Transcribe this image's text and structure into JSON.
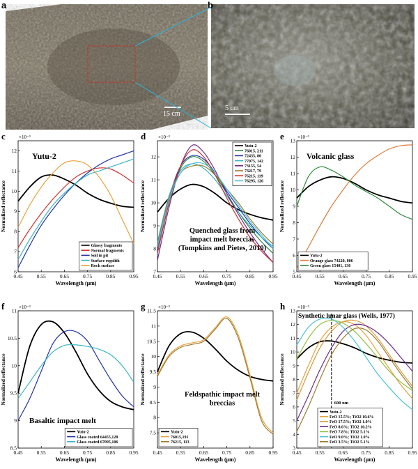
{
  "panel_letters": {
    "a": "a",
    "b": "b",
    "c": "c",
    "d": "d",
    "e": "e",
    "f": "f",
    "g": "g",
    "h": "h"
  },
  "photos": {
    "a_scale": "15 cm",
    "b_scale": "5 cm"
  },
  "colors": {
    "yutu": "#000000",
    "red": "#d0312d",
    "blue": "#2233a8",
    "purple": "#6a2c8e",
    "teal": "#35b6c4",
    "orange": "#e8a33d",
    "green": "#2e8b3a",
    "gold": "#d39a3a",
    "darkgold": "#9c7b2e",
    "lime": "#8fbf3a",
    "cyan": "#49c2d9"
  },
  "common": {
    "xlabel": "Wavelength (μm)",
    "ylabel": "Normalized reflectance",
    "exponent": "×10⁻³",
    "xticks": [
      "0.45",
      "0.55",
      "0.65",
      "0.75",
      "0.85",
      "0.95"
    ]
  },
  "chart_data": [
    {
      "id": "c",
      "type": "line",
      "title": "Yutu-2",
      "xlim": [
        0.45,
        0.95
      ],
      "ylim": [
        6,
        12.5
      ],
      "yticks": [
        "6",
        "7",
        "8",
        "9",
        "10",
        "11",
        "12"
      ],
      "legend": "bottom-right",
      "series": [
        {
          "name": "Glassy fragments",
          "color": "#000000",
          "x": [
            0.45,
            0.5,
            0.55,
            0.6,
            0.65,
            0.7,
            0.75,
            0.8,
            0.85,
            0.9,
            0.95
          ],
          "y": [
            9.5,
            10.2,
            10.7,
            10.8,
            10.6,
            10.3,
            9.9,
            9.6,
            9.4,
            9.25,
            9.2
          ]
        },
        {
          "name": "Normal fragments",
          "color": "#d0312d",
          "x": [
            0.45,
            0.5,
            0.55,
            0.6,
            0.65,
            0.7,
            0.75,
            0.8,
            0.85,
            0.9,
            0.95
          ],
          "y": [
            7.2,
            8.1,
            8.9,
            9.6,
            10.2,
            10.7,
            11.0,
            11.15,
            11.1,
            10.8,
            10.4
          ]
        },
        {
          "name": "Soil in pit",
          "color": "#2233a8",
          "x": [
            0.45,
            0.5,
            0.55,
            0.6,
            0.65,
            0.7,
            0.75,
            0.8,
            0.85,
            0.9,
            0.95
          ],
          "y": [
            6.2,
            7.3,
            8.3,
            9.1,
            9.8,
            10.4,
            10.9,
            11.3,
            11.6,
            11.8,
            12.0
          ]
        },
        {
          "name": "Surface regolith",
          "color": "#35b6c4",
          "x": [
            0.45,
            0.5,
            0.55,
            0.6,
            0.65,
            0.7,
            0.75,
            0.8,
            0.85,
            0.9,
            0.95
          ],
          "y": [
            6.6,
            7.6,
            8.5,
            9.3,
            9.9,
            10.4,
            10.8,
            11.0,
            11.2,
            11.4,
            11.6
          ]
        },
        {
          "name": "Rock surface",
          "color": "#e8a33d",
          "x": [
            0.45,
            0.5,
            0.55,
            0.6,
            0.65,
            0.7,
            0.75,
            0.8,
            0.85,
            0.9,
            0.95
          ],
          "y": [
            8.2,
            9.3,
            10.2,
            10.9,
            11.4,
            11.5,
            11.3,
            10.7,
            9.8,
            8.6,
            7.4
          ]
        }
      ]
    },
    {
      "id": "d",
      "type": "line",
      "title": "Quenched glass from impact melt breccias (Tompkins and Pietes, 2010)",
      "title_lines": [
        "Quenched glass from",
        "impact melt breccias",
        "(Tompkins and Pietes, 2010)"
      ],
      "xlim": [
        0.45,
        0.95
      ],
      "ylim": [
        7,
        12.7
      ],
      "yticks": [
        "7",
        "8",
        "9",
        "10",
        "11",
        "12"
      ],
      "legend": "top-right",
      "series": [
        {
          "name": "Yutu-2",
          "color": "#000000",
          "x": [
            0.45,
            0.5,
            0.55,
            0.6,
            0.65,
            0.7,
            0.75,
            0.8,
            0.85,
            0.9,
            0.95
          ],
          "y": [
            9.6,
            10.2,
            10.6,
            10.8,
            10.7,
            10.4,
            10.0,
            9.7,
            9.5,
            9.35,
            9.25
          ]
        },
        {
          "name": "76015, 211",
          "color": "#2e8b3a",
          "x": [
            0.45,
            0.5,
            0.55,
            0.6,
            0.65,
            0.7,
            0.75,
            0.8,
            0.85,
            0.9,
            0.95
          ],
          "y": [
            7.8,
            10.0,
            11.5,
            12.0,
            11.8,
            11.2,
            10.4,
            9.6,
            8.9,
            8.3,
            7.8
          ]
        },
        {
          "name": "72435, 80",
          "color": "#2233a8",
          "x": [
            0.45,
            0.5,
            0.55,
            0.6,
            0.65,
            0.7,
            0.75,
            0.8,
            0.85,
            0.9,
            0.95
          ],
          "y": [
            8.0,
            10.2,
            11.6,
            12.05,
            11.9,
            11.3,
            10.5,
            9.8,
            9.1,
            8.5,
            8.0
          ]
        },
        {
          "name": "77075, 142",
          "color": "#35b6c4",
          "x": [
            0.45,
            0.5,
            0.55,
            0.6,
            0.65,
            0.7,
            0.75,
            0.8,
            0.85,
            0.9,
            0.95
          ],
          "y": [
            8.3,
            10.3,
            11.4,
            11.7,
            11.5,
            11.0,
            10.3,
            9.6,
            9.0,
            8.5,
            8.1
          ]
        },
        {
          "name": "73155, 54",
          "color": "#6a2c8e",
          "x": [
            0.45,
            0.5,
            0.55,
            0.6,
            0.65,
            0.7,
            0.75,
            0.8,
            0.85,
            0.9,
            0.95
          ],
          "y": [
            7.5,
            9.8,
            11.6,
            12.5,
            12.2,
            11.4,
            10.4,
            9.5,
            8.7,
            8.0,
            7.4
          ]
        },
        {
          "name": "73217, 79",
          "color": "#9c7b2e",
          "x": [
            0.45,
            0.5,
            0.55,
            0.6,
            0.65,
            0.7,
            0.75,
            0.8,
            0.85,
            0.9,
            0.95
          ],
          "y": [
            8.2,
            10.2,
            11.3,
            11.6,
            11.6,
            11.2,
            10.6,
            10.0,
            9.3,
            8.7,
            8.2
          ]
        },
        {
          "name": "76215, 119",
          "color": "#d0312d",
          "x": [
            0.45,
            0.5,
            0.55,
            0.6,
            0.65,
            0.7,
            0.75,
            0.8,
            0.85,
            0.9,
            0.95
          ],
          "y": [
            7.8,
            10.0,
            11.6,
            12.3,
            12.0,
            11.2,
            10.2,
            9.3,
            8.5,
            7.9,
            7.4
          ]
        },
        {
          "name": "76295, 126",
          "color": "#49c2d9",
          "x": [
            0.45,
            0.5,
            0.55,
            0.6,
            0.65,
            0.7,
            0.75,
            0.8,
            0.85,
            0.9,
            0.95
          ],
          "y": [
            8.1,
            10.1,
            11.3,
            11.7,
            11.7,
            11.3,
            10.6,
            9.9,
            9.2,
            8.6,
            8.0
          ]
        }
      ]
    },
    {
      "id": "e",
      "type": "line",
      "title": "Volcanic glass",
      "xlim": [
        0.45,
        0.95
      ],
      "ylim": [
        5,
        13
      ],
      "yticks": [
        "5",
        "6",
        "7",
        "8",
        "9",
        "10",
        "11",
        "12",
        "13"
      ],
      "legend": "bottom-left",
      "series": [
        {
          "name": "Yutu-2",
          "color": "#000000",
          "x": [
            0.45,
            0.5,
            0.55,
            0.6,
            0.65,
            0.7,
            0.75,
            0.8,
            0.85,
            0.9,
            0.95
          ],
          "y": [
            9.5,
            10.2,
            10.6,
            10.8,
            10.7,
            10.4,
            10.0,
            9.7,
            9.5,
            9.3,
            9.2
          ]
        },
        {
          "name": "Orange glass 74220, 806",
          "color": "#e07b39",
          "x": [
            0.45,
            0.5,
            0.55,
            0.6,
            0.65,
            0.7,
            0.75,
            0.8,
            0.85,
            0.9,
            0.95
          ],
          "y": [
            5.2,
            6.5,
            7.8,
            9.0,
            10.0,
            10.9,
            11.6,
            12.1,
            12.5,
            12.7,
            12.75
          ]
        },
        {
          "name": "Green glass 15401, 136",
          "color": "#2e8b3a",
          "x": [
            0.45,
            0.5,
            0.55,
            0.6,
            0.65,
            0.7,
            0.75,
            0.8,
            0.85,
            0.9,
            0.95
          ],
          "y": [
            9.0,
            10.8,
            11.4,
            11.2,
            10.8,
            10.3,
            9.9,
            9.5,
            9.0,
            8.5,
            8.2
          ]
        }
      ]
    },
    {
      "id": "f",
      "type": "line",
      "title": "Basaltic impact melt",
      "xlim": [
        0.45,
        0.95
      ],
      "ylim": [
        8.5,
        11
      ],
      "yticks": [
        "8.5",
        "9",
        "9.5",
        "10",
        "10.5",
        "11"
      ],
      "legend": "bottom-right",
      "series": [
        {
          "name": "Yutu-2",
          "color": "#000000",
          "x": [
            0.45,
            0.5,
            0.55,
            0.6,
            0.65,
            0.7,
            0.75,
            0.8,
            0.85,
            0.9,
            0.95
          ],
          "y": [
            9.5,
            10.35,
            10.75,
            10.8,
            10.6,
            10.25,
            9.85,
            9.55,
            9.35,
            9.25,
            9.2
          ]
        },
        {
          "name": "Glass coated 64455,128",
          "color": "#2233a8",
          "x": [
            0.45,
            0.5,
            0.55,
            0.6,
            0.65,
            0.7,
            0.75,
            0.8,
            0.85,
            0.9,
            0.95
          ],
          "y": [
            9.0,
            9.4,
            9.9,
            10.4,
            10.62,
            10.62,
            10.45,
            10.1,
            9.75,
            9.45,
            9.25
          ]
        },
        {
          "name": "Glass coated 67095,106",
          "color": "#35b6c4",
          "x": [
            0.45,
            0.5,
            0.55,
            0.6,
            0.65,
            0.7,
            0.75,
            0.8,
            0.85,
            0.9,
            0.95
          ],
          "y": [
            9.4,
            9.7,
            10.0,
            10.25,
            10.37,
            10.38,
            10.35,
            10.3,
            10.2,
            10.0,
            9.7
          ]
        }
      ]
    },
    {
      "id": "g",
      "type": "line",
      "title": "Feldspathic impact melt breccias",
      "title_lines": [
        "Feldspathic impact melt",
        "breccias"
      ],
      "xlim": [
        0.45,
        0.95
      ],
      "ylim": [
        7,
        11.5
      ],
      "yticks": [
        "7.5",
        "8",
        "8.5",
        "9",
        "9.5",
        "10",
        "10.5",
        "11",
        "11.5"
      ],
      "legend": "bottom-left",
      "series": [
        {
          "name": "Yutu-2",
          "color": "#000000",
          "x": [
            0.45,
            0.5,
            0.55,
            0.6,
            0.65,
            0.7,
            0.75,
            0.8,
            0.85,
            0.9,
            0.95
          ],
          "y": [
            9.5,
            10.35,
            10.75,
            10.8,
            10.6,
            10.25,
            9.85,
            9.55,
            9.35,
            9.25,
            9.2
          ]
        },
        {
          "name": "76015,191",
          "color": "#e8a33d",
          "x": [
            0.45,
            0.5,
            0.55,
            0.6,
            0.65,
            0.7,
            0.75,
            0.8,
            0.85,
            0.9,
            0.95
          ],
          "y": [
            9.4,
            10.05,
            10.35,
            10.45,
            10.55,
            10.95,
            11.3,
            10.7,
            9.4,
            8.0,
            7.5
          ]
        },
        {
          "name": "76215, 113",
          "color": "#9c7b2e",
          "x": [
            0.45,
            0.5,
            0.55,
            0.6,
            0.65,
            0.7,
            0.75,
            0.8,
            0.85,
            0.9,
            0.95
          ],
          "y": [
            9.35,
            10.0,
            10.3,
            10.4,
            10.5,
            10.9,
            11.25,
            10.6,
            9.3,
            7.9,
            7.45
          ]
        }
      ]
    },
    {
      "id": "h",
      "type": "line",
      "title": "Synthetic lunar glass (Wells, 1977)",
      "xlim": [
        0.45,
        0.95
      ],
      "ylim": [
        3,
        13
      ],
      "yticks": [
        "3",
        "4",
        "5",
        "6",
        "7",
        "8",
        "9",
        "10",
        "11",
        "12",
        "13"
      ],
      "legend": "bottom-right",
      "annotation": "600 nm",
      "annotation_x": 0.6,
      "series": [
        {
          "name": "Yutu-2",
          "color": "#000000",
          "x": [
            0.45,
            0.5,
            0.55,
            0.6,
            0.65,
            0.7,
            0.75,
            0.8,
            0.85,
            0.9,
            0.95
          ],
          "y": [
            9.5,
            10.3,
            10.75,
            10.8,
            10.6,
            10.3,
            9.9,
            9.6,
            9.4,
            9.25,
            9.2
          ]
        },
        {
          "name": "FeO 15.5%; TiO2 10.6%",
          "color": "#e8a33d",
          "x": [
            0.45,
            0.5,
            0.55,
            0.6,
            0.65,
            0.7,
            0.75,
            0.8,
            0.85,
            0.9,
            0.95
          ],
          "y": [
            7.0,
            9.0,
            10.8,
            11.8,
            12.2,
            12.0,
            11.2,
            10.0,
            8.8,
            7.6,
            6.6
          ]
        },
        {
          "name": "FeO 17.5%; TiO2 1.0%",
          "color": "#d39a3a",
          "x": [
            0.45,
            0.5,
            0.55,
            0.6,
            0.65,
            0.7,
            0.75,
            0.8,
            0.85,
            0.9,
            0.95
          ],
          "y": [
            6.5,
            8.5,
            10.3,
            11.5,
            12.2,
            12.3,
            11.9,
            11.0,
            9.8,
            8.6,
            7.5
          ]
        },
        {
          "name": "FeO 8.6%; TiO2 10.2%",
          "color": "#6a2c8e",
          "x": [
            0.45,
            0.5,
            0.55,
            0.6,
            0.65,
            0.7,
            0.75,
            0.8,
            0.85,
            0.9,
            0.95
          ],
          "y": [
            5.0,
            6.8,
            8.7,
            10.3,
            11.5,
            12.0,
            11.9,
            11.4,
            10.6,
            9.6,
            8.6
          ]
        },
        {
          "name": "FeO 7.8%; TiO2 5.1%",
          "color": "#8fbf3a",
          "x": [
            0.45,
            0.5,
            0.55,
            0.6,
            0.65,
            0.7,
            0.75,
            0.8,
            0.85,
            0.9,
            0.95
          ],
          "y": [
            9.5,
            11.0,
            12.0,
            12.3,
            12.1,
            11.5,
            10.6,
            9.6,
            8.6,
            7.8,
            7.2
          ]
        },
        {
          "name": "FeO 9.0%; TiO2 1.0%",
          "color": "#49c2d9",
          "x": [
            0.45,
            0.5,
            0.55,
            0.6,
            0.65,
            0.7,
            0.75,
            0.8,
            0.85,
            0.9,
            0.95
          ],
          "y": [
            10.5,
            11.8,
            12.4,
            12.4,
            11.8,
            10.8,
            9.6,
            8.4,
            7.4,
            6.5,
            5.8
          ]
        },
        {
          "name": "FeO 3.5%; TiO2 5.1%",
          "color": "#9c7b2e",
          "x": [
            0.45,
            0.5,
            0.55,
            0.6,
            0.65,
            0.7,
            0.75,
            0.8,
            0.85,
            0.9,
            0.95
          ],
          "y": [
            4.2,
            6.0,
            8.0,
            9.8,
            11.0,
            11.7,
            11.6,
            10.8,
            9.6,
            8.4,
            7.3
          ]
        }
      ]
    }
  ]
}
